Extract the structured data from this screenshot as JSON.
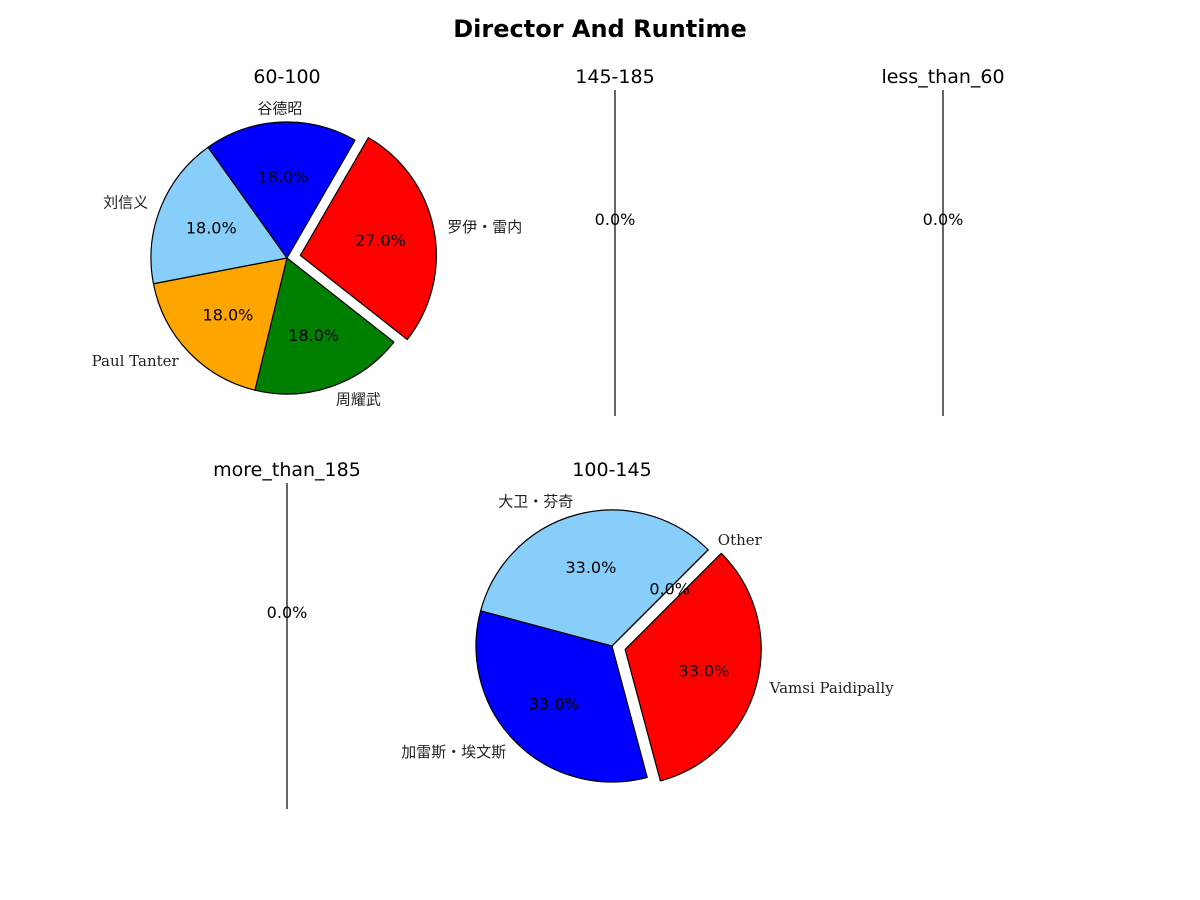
{
  "title": "Director And Runtime",
  "chart_data": [
    {
      "type": "pie",
      "title": "60-100",
      "categories": [
        "罗伊・雷内",
        "周耀武",
        "Paul Tanter",
        "刘信义",
        "谷德昭"
      ],
      "values": [
        27.0,
        18.0,
        18.0,
        18.0,
        18.0
      ],
      "pct_labels": [
        "27.0%",
        "18.0%",
        "18.0%",
        "18.0%",
        "18.0%"
      ],
      "colors": [
        "#ff0000",
        "#008000",
        "#ffa500",
        "#87cefa",
        "#0000ff"
      ],
      "explode": [
        0.1,
        0,
        0,
        0,
        0
      ]
    },
    {
      "type": "pie",
      "title": "145-185",
      "categories": [],
      "values": [],
      "pct_labels": [
        "0.0%"
      ],
      "colors": [],
      "explode": []
    },
    {
      "type": "pie",
      "title": "less_than_60",
      "categories": [],
      "values": [],
      "pct_labels": [
        "0.0%"
      ],
      "colors": [],
      "explode": []
    },
    {
      "type": "pie",
      "title": "more_than_185",
      "categories": [],
      "values": [],
      "pct_labels": [
        "0.0%"
      ],
      "colors": [],
      "explode": []
    },
    {
      "type": "pie",
      "title": "100-145",
      "categories": [
        "Vamsi Paidipally",
        "加雷斯・埃文斯",
        "大卫・芬奇",
        "Other"
      ],
      "values": [
        33.0,
        33.0,
        33.0,
        0.0
      ],
      "pct_labels": [
        "33.0%",
        "33.0%",
        "33.0%",
        "0.0%"
      ],
      "colors": [
        "#ff0000",
        "#0000ff",
        "#87cefa",
        "#ffffff"
      ],
      "explode": [
        0.1,
        0,
        0,
        0
      ]
    }
  ]
}
